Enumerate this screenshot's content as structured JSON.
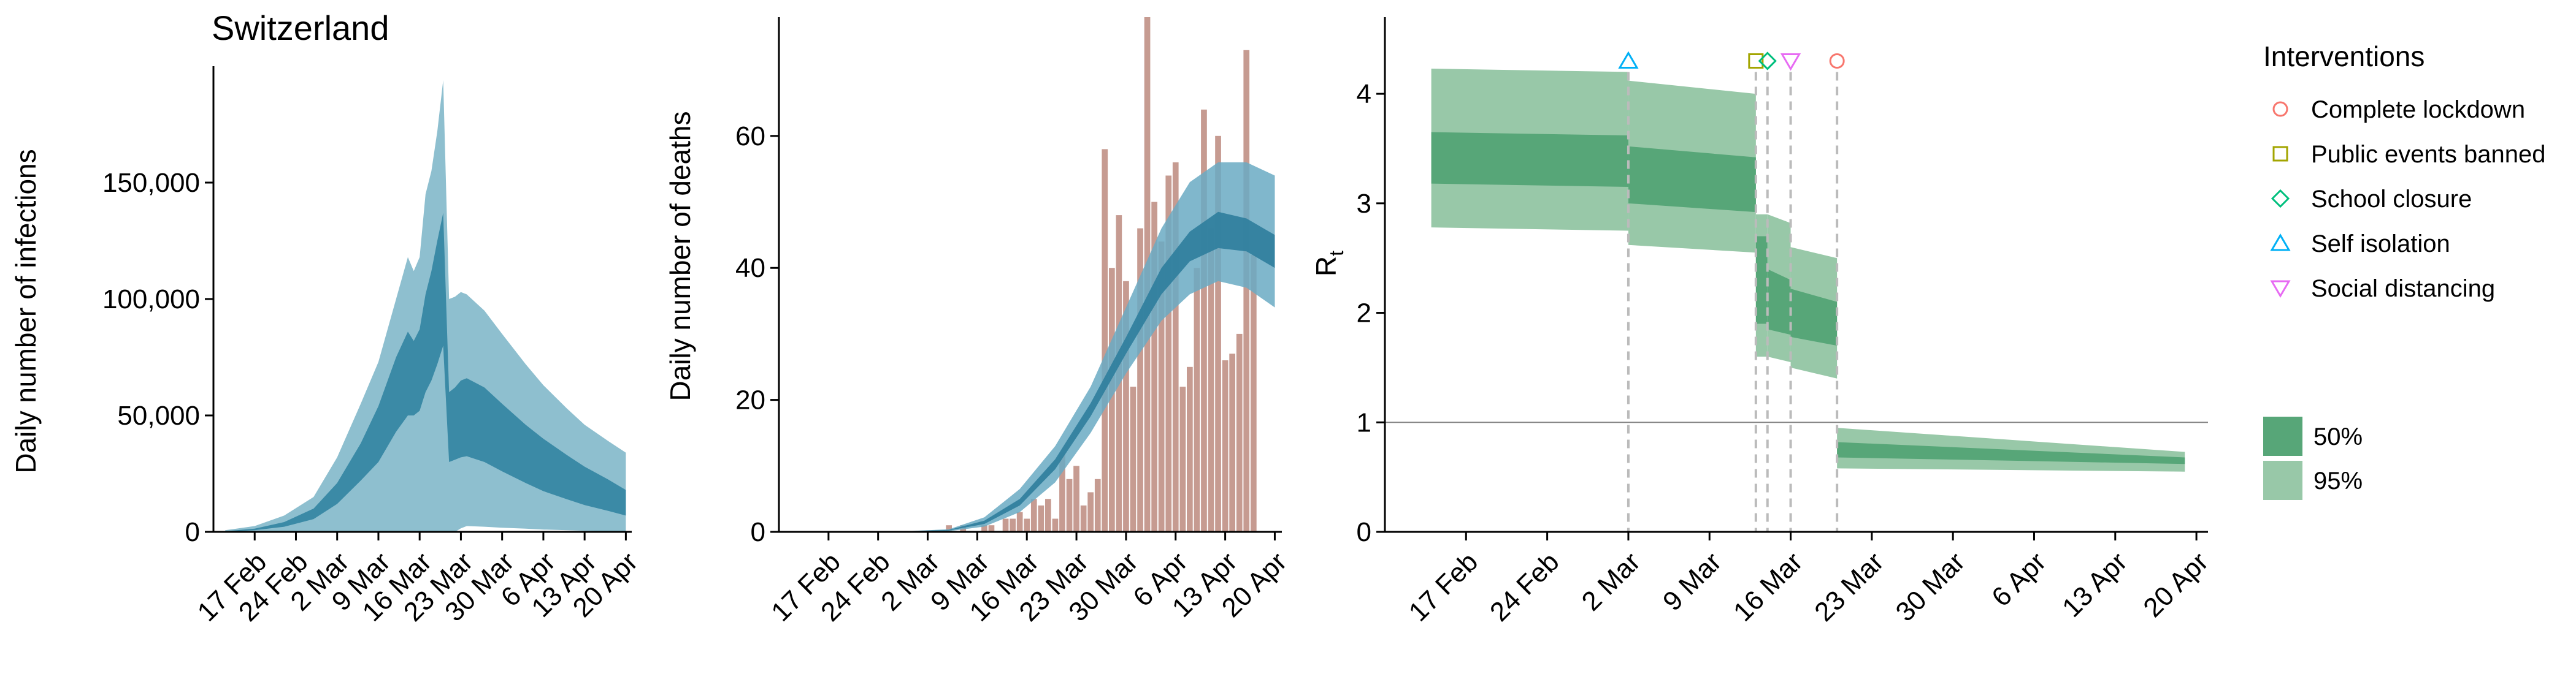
{
  "figure_title": "Switzerland",
  "colors": {
    "infection_95": "#8ebfcf",
    "infection_50": "#3b8aa6",
    "deaths_bar": "#c69b91",
    "deaths_95": "#6aaac3",
    "deaths_50": "#2d7d9c",
    "rt_50": "#57a678",
    "rt_95": "#98c8a8",
    "grid_ref": "#888888",
    "intervention_line": "#bbbbbb",
    "lockdown": "#f8766d",
    "public_events": "#a3a500",
    "school_closure": "#00bf7d",
    "self_isolation": "#00b0f6",
    "social_distancing": "#e76bf3"
  },
  "chart_data": [
    {
      "type": "area",
      "title": "Switzerland",
      "xlabel": "",
      "ylabel": "Daily number of infections",
      "xlim": [
        "2020-02-10",
        "2020-04-21"
      ],
      "ylim": [
        0,
        200000
      ],
      "x_ticks": [
        "17 Feb",
        "24 Feb",
        "2 Mar",
        "9 Mar",
        "16 Mar",
        "23 Mar",
        "30 Mar",
        "6 Apr",
        "13 Apr",
        "20 Apr"
      ],
      "y_ticks": [
        "0",
        "50,000",
        "100,000",
        "150,000"
      ],
      "x": [
        "2020-02-12",
        "2020-02-17",
        "2020-02-22",
        "2020-02-27",
        "2020-03-02",
        "2020-03-06",
        "2020-03-09",
        "2020-03-12",
        "2020-03-14",
        "2020-03-15",
        "2020-03-16",
        "2020-03-17",
        "2020-03-18",
        "2020-03-19",
        "2020-03-20",
        "2020-03-21",
        "2020-03-22",
        "2020-03-23",
        "2020-03-24",
        "2020-03-27",
        "2020-03-30",
        "2020-04-03",
        "2020-04-06",
        "2020-04-10",
        "2020-04-13",
        "2020-04-17",
        "2020-04-20"
      ],
      "bands": [
        {
          "name": "95%",
          "lower": [
            0,
            0,
            0,
            0,
            0,
            0,
            0,
            0,
            0,
            0,
            0,
            0,
            0,
            0,
            0,
            0,
            0,
            1500,
            2500,
            2200,
            1800,
            1400,
            1000,
            700,
            500,
            300,
            200
          ],
          "upper": [
            700,
            2500,
            7000,
            15000,
            32000,
            55000,
            73000,
            100000,
            118000,
            112000,
            118000,
            145000,
            155000,
            172000,
            194000,
            100000,
            101000,
            103000,
            102000,
            95000,
            85000,
            72000,
            63000,
            53000,
            46000,
            39000,
            34000
          ]
        },
        {
          "name": "50%",
          "lower": [
            100,
            700,
            2200,
            5500,
            12000,
            22000,
            30000,
            43000,
            50000,
            50000,
            52000,
            60000,
            65000,
            72000,
            80000,
            30000,
            31000,
            32000,
            32500,
            30000,
            26000,
            21000,
            17500,
            14000,
            11500,
            9000,
            7000
          ]
        },
        {
          "name": "50%u",
          "upper": [
            300,
            1400,
            4200,
            10000,
            21000,
            38000,
            54000,
            75000,
            86000,
            82000,
            87000,
            102000,
            112000,
            125000,
            137000,
            60000,
            62000,
            65000,
            66000,
            62000,
            55000,
            46000,
            40000,
            33000,
            28000,
            22500,
            18000
          ]
        }
      ]
    },
    {
      "type": "bar",
      "title": "",
      "xlabel": "",
      "ylabel": "Daily number of deaths",
      "xlim": [
        "2020-02-10",
        "2020-04-21"
      ],
      "ylim": [
        0,
        78
      ],
      "x_ticks": [
        "17 Feb",
        "24 Feb",
        "2 Mar",
        "9 Mar",
        "16 Mar",
        "23 Mar",
        "30 Mar",
        "6 Apr",
        "13 Apr",
        "20 Apr"
      ],
      "y_ticks": [
        "0",
        "20",
        "40",
        "60"
      ],
      "bars": {
        "start": "2020-03-05",
        "values": [
          1,
          0,
          1,
          0,
          0,
          1,
          1,
          0,
          2,
          2,
          3,
          2,
          5,
          4,
          5,
          2,
          12,
          8,
          10,
          4,
          6,
          8,
          58,
          40,
          48,
          38,
          22,
          46,
          78,
          50,
          44,
          54,
          56,
          22,
          25,
          40,
          64,
          46,
          60,
          26,
          27,
          30,
          73,
          42
        ]
      },
      "model": {
        "x": [
          "2020-02-12",
          "2020-02-28",
          "2020-03-05",
          "2020-03-10",
          "2020-03-15",
          "2020-03-20",
          "2020-03-25",
          "2020-03-30",
          "2020-04-04",
          "2020-04-08",
          "2020-04-12",
          "2020-04-16",
          "2020-04-20"
        ],
        "lower95": [
          0,
          0,
          0.1,
          0.8,
          3,
          7.5,
          15,
          24,
          32,
          36,
          38,
          37,
          34
        ],
        "upper95": [
          0,
          0.1,
          0.4,
          2.2,
          6.5,
          13,
          22,
          34,
          46,
          53,
          56,
          56,
          54
        ],
        "lower50": [
          0,
          0,
          0.2,
          1.2,
          4,
          9.5,
          17.5,
          27,
          36,
          41,
          43,
          42.5,
          40
        ],
        "upper50": [
          0,
          0.1,
          0.3,
          1.7,
          5,
          11,
          19.5,
          29.5,
          40,
          45.5,
          48.5,
          47.5,
          45
        ]
      }
    },
    {
      "type": "area",
      "title": "",
      "xlabel": "",
      "ylabel": "R",
      "ylabel_subscript": "t",
      "xlim": [
        "2020-02-10",
        "2020-04-21"
      ],
      "ylim": [
        0,
        4.7
      ],
      "x_ticks": [
        "17 Feb",
        "24 Feb",
        "2 Mar",
        "9 Mar",
        "16 Mar",
        "23 Mar",
        "30 Mar",
        "6 Apr",
        "13 Apr",
        "20 Apr"
      ],
      "y_ticks": [
        "0",
        "1",
        "2",
        "3",
        "4"
      ],
      "reference_line_y": 1,
      "segments": [
        {
          "start": "2020-02-14",
          "end": "2020-03-02",
          "lower95_start": 2.78,
          "lower95_end": 2.75,
          "upper95_start": 4.23,
          "upper95_end": 4.2,
          "lower50_start": 3.18,
          "lower50_end": 3.15,
          "upper50_start": 3.65,
          "upper50_end": 3.62
        },
        {
          "start": "2020-03-02",
          "end": "2020-03-13",
          "lower95_start": 2.62,
          "lower95_end": 2.55,
          "upper95_start": 4.12,
          "upper95_end": 4.0,
          "lower50_start": 3.0,
          "lower50_end": 2.92,
          "upper50_start": 3.52,
          "upper50_end": 3.42
        },
        {
          "start": "2020-03-13",
          "end": "2020-03-14",
          "lower95_start": 1.6,
          "lower95_end": 1.6,
          "upper95_start": 2.9,
          "upper95_end": 2.9,
          "lower50_start": 1.9,
          "lower50_end": 1.9,
          "upper50_start": 2.7,
          "upper50_end": 2.7
        },
        {
          "start": "2020-03-14",
          "end": "2020-03-16",
          "lower95_start": 1.6,
          "lower95_end": 1.55,
          "upper95_start": 2.9,
          "upper95_end": 2.82,
          "lower50_start": 1.85,
          "lower50_end": 1.8,
          "upper50_start": 2.4,
          "upper50_end": 2.3
        },
        {
          "start": "2020-03-16",
          "end": "2020-03-20",
          "lower95_start": 1.5,
          "lower95_end": 1.4,
          "upper95_start": 2.6,
          "upper95_end": 2.5,
          "lower50_start": 1.78,
          "lower50_end": 1.7,
          "upper50_start": 2.22,
          "upper50_end": 2.1
        },
        {
          "start": "2020-03-20",
          "end": "2020-04-19",
          "lower95_start": 0.58,
          "lower95_end": 0.55,
          "upper95_start": 0.95,
          "upper95_end": 0.73,
          "lower50_start": 0.68,
          "lower50_end": 0.62,
          "upper50_start": 0.82,
          "upper50_end": 0.68
        }
      ],
      "interventions": [
        {
          "name": "Self isolation",
          "date": "2020-03-02",
          "marker": "triangle-up",
          "color": "#00b0f6"
        },
        {
          "name": "Public events banned",
          "date": "2020-03-13",
          "marker": "square",
          "color": "#a3a500"
        },
        {
          "name": "School closure",
          "date": "2020-03-14",
          "marker": "diamond",
          "color": "#00bf7d"
        },
        {
          "name": "Social distancing",
          "date": "2020-03-16",
          "marker": "triangle-down",
          "color": "#e76bf3"
        },
        {
          "name": "Complete lockdown",
          "date": "2020-03-20",
          "marker": "circle",
          "color": "#f8766d"
        }
      ],
      "legend": {
        "title": "Interventions",
        "items": [
          {
            "label": "Complete lockdown",
            "marker": "circle",
            "color": "#f8766d"
          },
          {
            "label": "Public events banned",
            "marker": "square",
            "color": "#a3a500"
          },
          {
            "label": "School closure",
            "marker": "diamond",
            "color": "#00bf7d"
          },
          {
            "label": "Self isolation",
            "marker": "triangle-up",
            "color": "#00b0f6"
          },
          {
            "label": "Social distancing",
            "marker": "triangle-down",
            "color": "#e76bf3"
          }
        ],
        "placement": "right",
        "band_items": [
          {
            "label": "50%",
            "color": "#57a678"
          },
          {
            "label": "95%",
            "color": "#98c8a8"
          }
        ]
      }
    }
  ]
}
